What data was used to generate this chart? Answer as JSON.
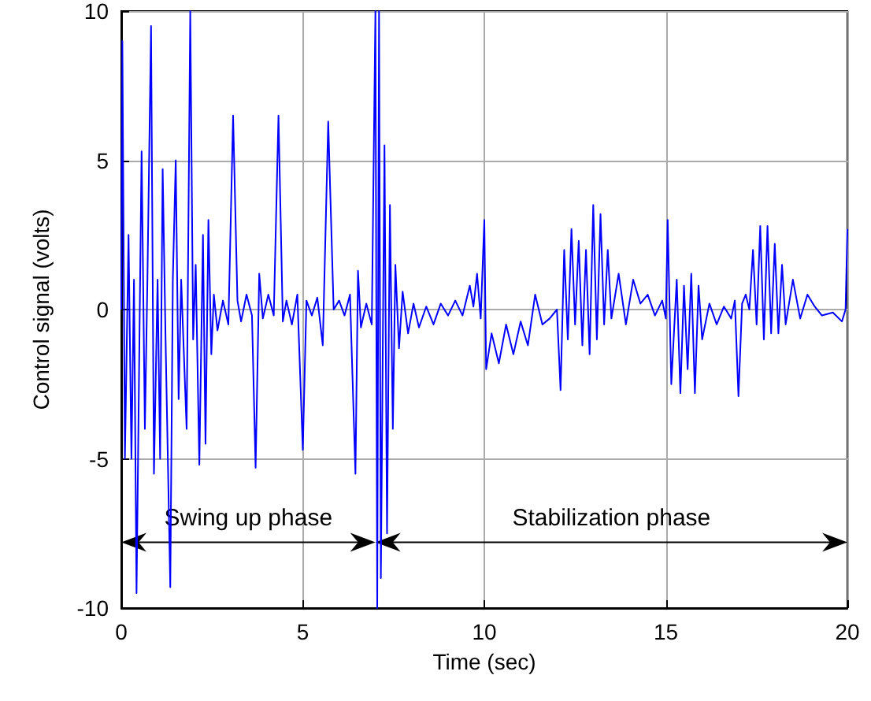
{
  "chart_data": {
    "type": "line",
    "xlabel": "Time (sec)",
    "ylabel": "Control signal (volts)",
    "xlim": [
      0,
      20
    ],
    "ylim": [
      -10,
      10
    ],
    "xticks": [
      0,
      5,
      10,
      15,
      20
    ],
    "yticks": [
      -10,
      -5,
      0,
      5,
      10
    ],
    "grid": true,
    "marker": "none",
    "line_style": "solid",
    "annotations": [
      "Swing up phase",
      "Stabilization phase"
    ],
    "series": [
      {
        "color": "#0000ff",
        "x": [
          0,
          0.03,
          0.1,
          0.2,
          0.28,
          0.35,
          0.42,
          0.5,
          0.56,
          0.65,
          0.72,
          0.82,
          0.9,
          1.0,
          1.07,
          1.14,
          1.22,
          1.35,
          1.42,
          1.5,
          1.58,
          1.65,
          1.8,
          1.9,
          1.98,
          2.05,
          2.15,
          2.25,
          2.32,
          2.4,
          2.48,
          2.55,
          2.65,
          2.8,
          2.95,
          3.08,
          3.2,
          3.3,
          3.45,
          3.6,
          3.7,
          3.8,
          3.9,
          4.05,
          4.2,
          4.33,
          4.45,
          4.55,
          4.7,
          4.85,
          5.0,
          5.1,
          5.25,
          5.4,
          5.55,
          5.7,
          5.85,
          6.0,
          6.15,
          6.3,
          6.45,
          6.52,
          6.6,
          6.75,
          6.9,
          7.0,
          7.05,
          7.1,
          7.15,
          7.25,
          7.32,
          7.4,
          7.48,
          7.55,
          7.65,
          7.75,
          7.9,
          8.05,
          8.2,
          8.4,
          8.6,
          8.8,
          9.0,
          9.2,
          9.4,
          9.6,
          9.7,
          9.8,
          9.9,
          10.0,
          10.05,
          10.2,
          10.4,
          10.6,
          10.8,
          11.0,
          11.2,
          11.4,
          11.6,
          11.8,
          12.0,
          12.1,
          12.2,
          12.3,
          12.4,
          12.5,
          12.6,
          12.7,
          12.8,
          12.9,
          13.0,
          13.1,
          13.2,
          13.3,
          13.4,
          13.5,
          13.7,
          13.9,
          14.1,
          14.3,
          14.5,
          14.7,
          14.9,
          15.0,
          15.05,
          15.15,
          15.3,
          15.4,
          15.5,
          15.6,
          15.7,
          15.8,
          15.9,
          16.0,
          16.2,
          16.4,
          16.6,
          16.8,
          16.9,
          17.0,
          17.1,
          17.2,
          17.3,
          17.4,
          17.5,
          17.6,
          17.7,
          17.8,
          17.9,
          18.0,
          18.1,
          18.2,
          18.3,
          18.5,
          18.7,
          18.9,
          19.1,
          19.3,
          19.6,
          19.85,
          19.95,
          20
        ],
        "values": [
          0,
          9,
          -5,
          2.5,
          -5,
          1,
          -9.5,
          -1,
          5.3,
          -4,
          1,
          9.5,
          -5.5,
          1,
          -5,
          4.7,
          -1,
          -9.3,
          1,
          5,
          -3,
          1,
          -4,
          10,
          -1,
          1.5,
          -5.2,
          2.5,
          -4.5,
          3,
          -1.5,
          0.5,
          -0.7,
          0.3,
          -0.5,
          6.5,
          0.3,
          -0.4,
          0.5,
          -0.2,
          -5.3,
          1.2,
          -0.3,
          0.5,
          -0.2,
          6.5,
          -0.4,
          0.3,
          -0.5,
          0.5,
          -4.7,
          0.3,
          -0.2,
          0.4,
          -1.2,
          6.3,
          0,
          0.3,
          -0.2,
          0.5,
          -5.5,
          1.3,
          -0.6,
          0.2,
          -0.5,
          10,
          -10,
          10,
          -9,
          5.5,
          -7.5,
          3.5,
          -4,
          1.5,
          -1.3,
          0.6,
          -0.8,
          0.2,
          -0.6,
          0.1,
          -0.5,
          0.2,
          -0.2,
          0.3,
          -0.2,
          0.8,
          0.1,
          1.2,
          -0.3,
          3,
          -2,
          -0.8,
          -1.8,
          -0.5,
          -1.5,
          -0.4,
          -1.2,
          0.5,
          -0.5,
          -0.3,
          0,
          -2.7,
          2,
          -1,
          2.7,
          -0.5,
          2.3,
          -1.2,
          2,
          -1.5,
          3.5,
          -1,
          3.2,
          -0.5,
          2,
          -0.3,
          1.2,
          -0.5,
          1,
          0.2,
          0.5,
          -0.2,
          0.3,
          -0.3,
          3,
          -2.5,
          1,
          -2.8,
          0.8,
          -2,
          1.2,
          -2.8,
          0.8,
          -1,
          0.2,
          -0.5,
          0.1,
          -0.3,
          0.3,
          -2.9,
          0.2,
          0.5,
          0,
          2,
          -0.5,
          2.8,
          -1,
          2.8,
          -0.8,
          2.2,
          -0.8,
          1.5,
          -0.5,
          1,
          -0.3,
          0.5,
          0.1,
          -0.2,
          -0.1,
          -0.4,
          0,
          2.7
        ]
      }
    ]
  }
}
